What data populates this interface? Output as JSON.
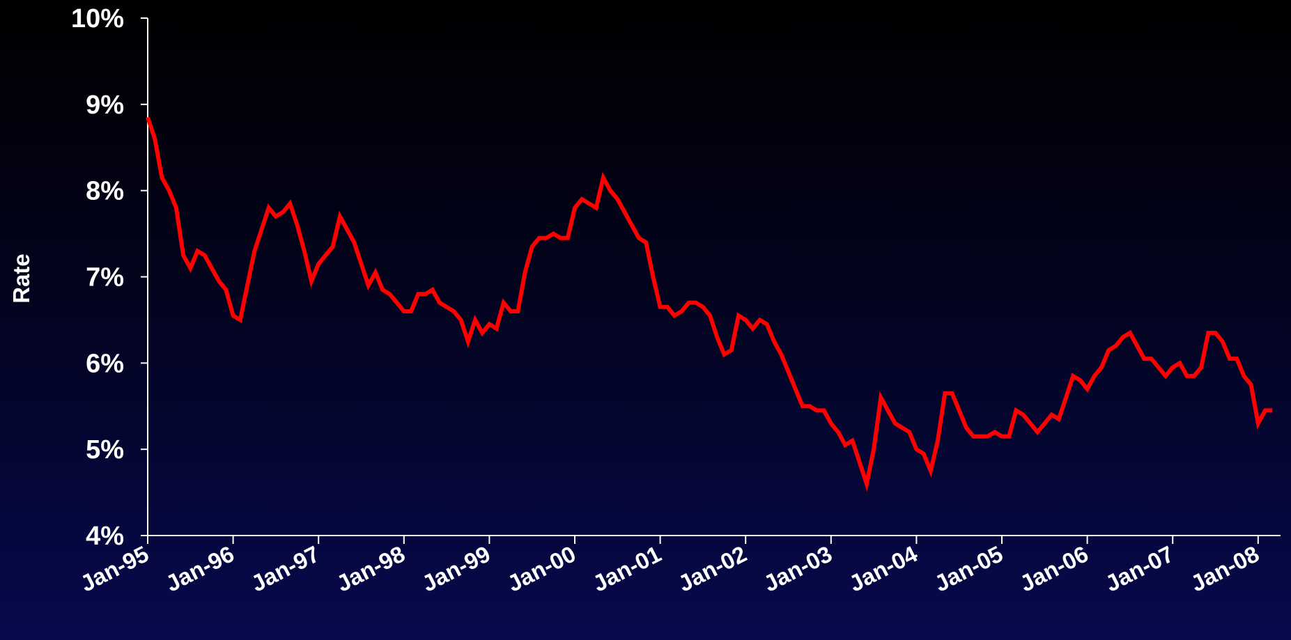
{
  "chart_data": {
    "type": "line",
    "title": "",
    "xlabel": "",
    "ylabel": "Rate",
    "ylim": [
      4,
      10
    ],
    "y_ticks": [
      4,
      5,
      6,
      7,
      8,
      9,
      10
    ],
    "y_tick_labels": [
      "4%",
      "5%",
      "6%",
      "7%",
      "8%",
      "9%",
      "10%"
    ],
    "x_tick_labels": [
      "Jan-95",
      "Jan-96",
      "Jan-97",
      "Jan-98",
      "Jan-99",
      "Jan-00",
      "Jan-01",
      "Jan-02",
      "Jan-03",
      "Jan-04",
      "Jan-05",
      "Jan-06",
      "Jan-07",
      "Jan-08"
    ],
    "grid": false,
    "legend": "none",
    "series_color": "#ff0000",
    "series": [
      {
        "values": [
          8.85,
          8.6,
          8.15,
          8.0,
          7.8,
          7.25,
          7.1,
          7.3,
          7.25,
          7.1,
          6.95,
          6.85,
          6.55,
          6.5,
          6.9,
          7.3,
          7.55,
          7.8,
          7.7,
          7.75,
          7.85,
          7.6,
          7.3,
          6.95,
          7.15,
          7.25,
          7.35,
          7.7,
          7.55,
          7.4,
          7.15,
          6.9,
          7.05,
          6.85,
          6.8,
          6.7,
          6.6,
          6.6,
          6.8,
          6.8,
          6.85,
          6.7,
          6.65,
          6.6,
          6.5,
          6.25,
          6.5,
          6.35,
          6.45,
          6.4,
          6.7,
          6.6,
          6.6,
          7.05,
          7.35,
          7.45,
          7.45,
          7.5,
          7.45,
          7.45,
          7.8,
          7.9,
          7.85,
          7.8,
          8.15,
          8.0,
          7.9,
          7.75,
          7.6,
          7.45,
          7.4,
          7.0,
          6.65,
          6.65,
          6.55,
          6.6,
          6.7,
          6.7,
          6.65,
          6.55,
          6.3,
          6.1,
          6.15,
          6.55,
          6.5,
          6.4,
          6.5,
          6.45,
          6.25,
          6.1,
          5.9,
          5.7,
          5.5,
          5.5,
          5.45,
          5.45,
          5.3,
          5.2,
          5.05,
          5.1,
          4.85,
          4.6,
          5.0,
          5.6,
          5.45,
          5.3,
          5.25,
          5.2,
          5.0,
          4.95,
          4.75,
          5.1,
          5.65,
          5.65,
          5.45,
          5.25,
          5.15,
          5.15,
          5.15,
          5.2,
          5.15,
          5.15,
          5.45,
          5.4,
          5.3,
          5.2,
          5.3,
          5.4,
          5.35,
          5.6,
          5.85,
          5.8,
          5.7,
          5.85,
          5.95,
          6.15,
          6.2,
          6.3,
          6.35,
          6.2,
          6.05,
          6.05,
          5.95,
          5.85,
          5.95,
          6.0,
          5.85,
          5.85,
          5.95,
          6.35,
          6.35,
          6.25,
          6.05,
          6.05,
          5.85,
          5.75,
          5.3,
          5.45,
          5.45
        ]
      }
    ]
  }
}
